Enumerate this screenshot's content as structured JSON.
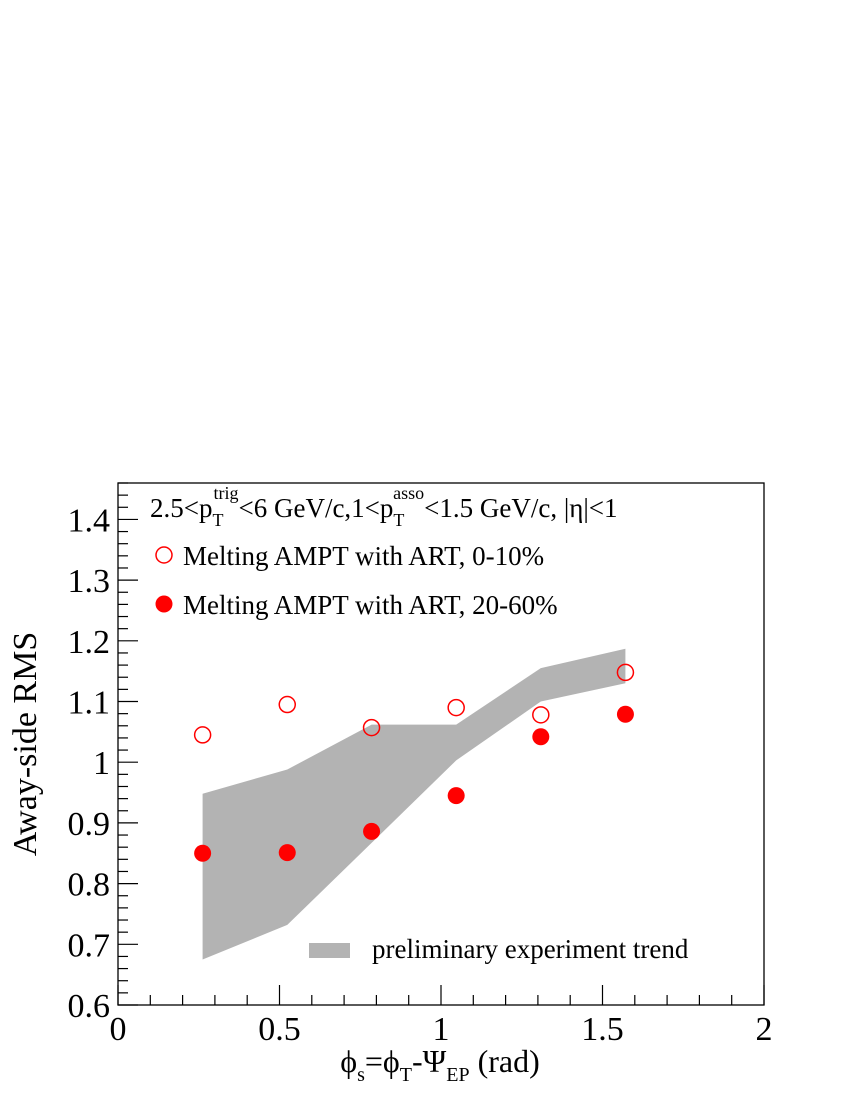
{
  "chart_data": {
    "type": "scatter",
    "annotation": {
      "prefix": "2.5<p",
      "sub1": "T",
      "sup1": "trig",
      "mid": "<6 GeV/c,1<p",
      "sub2": "T",
      "sup2": "asso",
      "suffix": "<1.5 GeV/c, |η|<1"
    },
    "xlabel": {
      "p1": "ϕ",
      "s1": "s",
      "p2": "=ϕ",
      "s2": "T",
      "p3": "-Ψ",
      "s3": "EP",
      "p4": " (rad)"
    },
    "ylabel": "Away-side RMS",
    "xlim": [
      0,
      2
    ],
    "ylim": [
      0.6,
      1.46
    ],
    "x_ticks": [
      0,
      0.5,
      1,
      1.5,
      2
    ],
    "x_tick_labels": [
      "0",
      "0.5",
      "1",
      "1.5",
      "2"
    ],
    "y_ticks": [
      0.6,
      0.7,
      0.8,
      0.9,
      1.0,
      1.1,
      1.2,
      1.3,
      1.4
    ],
    "y_tick_labels": [
      "0.6",
      "0.7",
      "0.8",
      "0.9",
      "1",
      "1.1",
      "1.2",
      "1.3",
      "1.4"
    ],
    "series": [
      {
        "name": "Melting AMPT with ART, 0-10%",
        "marker": "open-circle",
        "color": "#ff0000",
        "x": [
          0.262,
          0.524,
          0.785,
          1.047,
          1.309,
          1.571
        ],
        "y": [
          1.045,
          1.095,
          1.057,
          1.09,
          1.078,
          1.148
        ]
      },
      {
        "name": "Melting AMPT with ART, 20-60%",
        "marker": "filled-circle",
        "color": "#ff0000",
        "x": [
          0.262,
          0.524,
          0.785,
          1.047,
          1.309,
          1.571
        ],
        "y": [
          0.85,
          0.851,
          0.886,
          0.945,
          1.042,
          1.079
        ]
      }
    ],
    "band": {
      "name": "preliminary experiment trend",
      "color": "#b3b3b3",
      "x": [
        0.262,
        0.524,
        0.785,
        1.047,
        1.309,
        1.571
      ],
      "upper": [
        0.948,
        0.988,
        1.062,
        1.062,
        1.155,
        1.187
      ],
      "lower": [
        0.675,
        0.732,
        0.867,
        1.003,
        1.1,
        1.13
      ]
    },
    "legend": {
      "entries": [
        "Melting AMPT with ART, 0-10%",
        "Melting AMPT with ART, 20-60%",
        "preliminary experiment trend"
      ]
    }
  }
}
